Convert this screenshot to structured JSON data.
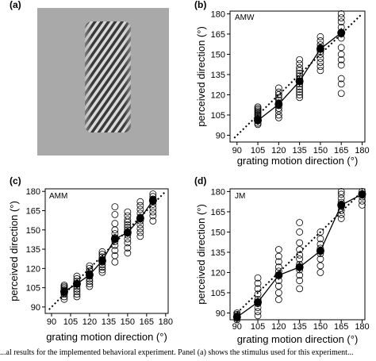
{
  "figure": {
    "panels": [
      {
        "letter": "(a)"
      },
      {
        "letter": "(b)",
        "subject": "AMW",
        "xlabel": "grating motion direction (°)",
        "ylabel": "perceived direction (°)"
      },
      {
        "letter": "(c)",
        "subject": "AMM",
        "xlabel": "grating motion direction (°)",
        "ylabel": "perceived direction (°)"
      },
      {
        "letter": "(d)",
        "subject": "JM",
        "xlabel": "grating motion direction (°)",
        "ylabel": "perceived direction (°)"
      }
    ],
    "caption": "...al results for the implemented behavioral experiment. Panel (a) shows the stimulus used for this experiment..."
  },
  "colors": {
    "stimulus_background": "#a9a9a9",
    "mean_marker": "#000000",
    "trial_marker_stroke": "#000000"
  },
  "chart_data": [
    {
      "type": "scatter",
      "panel": "(b)",
      "title": "AMW",
      "xlabel": "grating motion direction (°)",
      "ylabel": "perceived direction (°)",
      "xlim": [
        85,
        182
      ],
      "ylim": [
        85,
        182
      ],
      "xticks": [
        90,
        105,
        120,
        135,
        150,
        165,
        180
      ],
      "yticks": [
        90,
        105,
        120,
        135,
        150,
        165,
        180
      ],
      "identity_line": true,
      "mean_series": {
        "x": [
          105,
          120,
          135,
          150,
          165
        ],
        "y": [
          101,
          113,
          130,
          154,
          166
        ]
      },
      "trial_series": [
        {
          "x": 105,
          "y": [
            98,
            99,
            101,
            102,
            103,
            104,
            105,
            106,
            107,
            108,
            109,
            110,
            111
          ]
        },
        {
          "x": 120,
          "y": [
            103,
            105,
            108,
            110,
            112,
            114,
            116,
            118,
            120,
            122,
            125
          ]
        },
        {
          "x": 135,
          "y": [
            118,
            120,
            122,
            124,
            126,
            128,
            130,
            132,
            134,
            136,
            138,
            140,
            143,
            146
          ]
        },
        {
          "x": 150,
          "y": [
            138,
            141,
            144,
            147,
            150,
            152,
            155,
            157,
            160,
            163
          ]
        },
        {
          "x": 165,
          "y": [
            121,
            128,
            132,
            142,
            146,
            150,
            155,
            162,
            165,
            170,
            174,
            177,
            180
          ]
        }
      ]
    },
    {
      "type": "scatter",
      "panel": "(c)",
      "title": "AMM",
      "xlabel": "grating motion direction (°)",
      "ylabel": "perceived direction (°)",
      "xlim": [
        85,
        182
      ],
      "ylim": [
        85,
        182
      ],
      "xticks": [
        90,
        105,
        120,
        135,
        150,
        165,
        180
      ],
      "yticks": [
        90,
        105,
        120,
        135,
        150,
        165,
        180
      ],
      "identity_line": true,
      "mean_series": {
        "x": [
          100,
          110,
          120,
          130,
          140,
          150,
          160,
          170
        ],
        "y": [
          102,
          108,
          115,
          126,
          143,
          148,
          159,
          173
        ]
      },
      "trial_series": [
        {
          "x": 100,
          "y": [
            96,
            98,
            100,
            101,
            102,
            103,
            104,
            105,
            106,
            107
          ]
        },
        {
          "x": 110,
          "y": [
            98,
            100,
            102,
            104,
            106,
            108,
            110,
            112,
            114
          ]
        },
        {
          "x": 120,
          "y": [
            106,
            108,
            110,
            112,
            114,
            116,
            118,
            120,
            122
          ]
        },
        {
          "x": 130,
          "y": [
            117,
            119,
            121,
            123,
            125,
            127,
            129,
            131,
            133
          ]
        },
        {
          "x": 140,
          "y": [
            125,
            130,
            134,
            138,
            141,
            144,
            147,
            150,
            155,
            162,
            168
          ]
        },
        {
          "x": 150,
          "y": [
            132,
            136,
            140,
            143,
            146,
            148,
            150,
            152,
            154,
            156,
            158,
            161,
            164
          ]
        },
        {
          "x": 160,
          "y": [
            145,
            148,
            151,
            154,
            157,
            160,
            163,
            166,
            169,
            172
          ]
        },
        {
          "x": 170,
          "y": [
            157,
            161,
            164,
            167,
            170,
            172,
            174,
            176,
            178
          ]
        }
      ]
    },
    {
      "type": "scatter",
      "panel": "(d)",
      "title": "JM",
      "xlabel": "grating motion direction (°)",
      "ylabel": "perceived direction (°)",
      "xlim": [
        85,
        182
      ],
      "ylim": [
        85,
        182
      ],
      "xticks": [
        90,
        105,
        120,
        135,
        150,
        165,
        180
      ],
      "yticks": [
        90,
        105,
        120,
        135,
        150,
        165,
        180
      ],
      "identity_line": true,
      "mean_series": {
        "x": [
          90,
          105,
          120,
          135,
          150,
          165,
          180
        ],
        "y": [
          87,
          98,
          118,
          124,
          136,
          170,
          178
        ]
      },
      "trial_series": [
        {
          "x": 90,
          "y": [
            85,
            86,
            87,
            88,
            89,
            90
          ]
        },
        {
          "x": 105,
          "y": [
            88,
            91,
            94,
            97,
            100,
            104,
            108,
            112,
            116
          ]
        },
        {
          "x": 120,
          "y": [
            100,
            105,
            110,
            114,
            118,
            121,
            124,
            128,
            132,
            137
          ]
        },
        {
          "x": 135,
          "y": [
            108,
            114,
            118,
            122,
            126,
            130,
            133,
            137,
            142,
            150,
            157
          ]
        },
        {
          "x": 150,
          "y": [
            120,
            125,
            130,
            134,
            138,
            141,
            145,
            150
          ]
        },
        {
          "x": 165,
          "y": [
            160,
            163,
            166,
            169,
            172,
            175,
            178,
            180
          ]
        },
        {
          "x": 180,
          "y": [
            170,
            173,
            176,
            178,
            180
          ]
        }
      ]
    }
  ]
}
